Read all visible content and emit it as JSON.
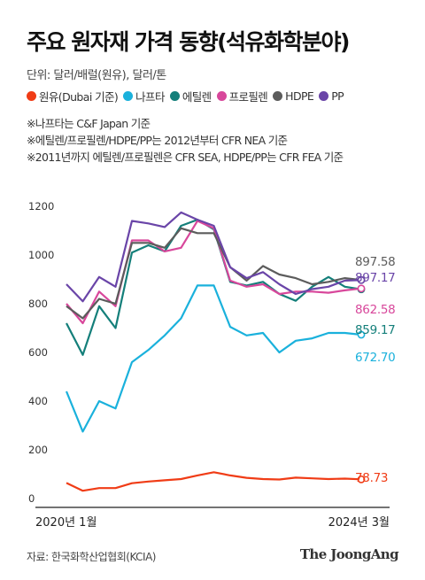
{
  "header": {
    "title": "주요 원자재 가격 동향(석유화학분야)",
    "unit": "단위: 달러/배럴(원유), 달러/톤"
  },
  "legend": [
    {
      "label": "원유(Dubai 기준)",
      "color": "#f03c16"
    },
    {
      "label": "나프타",
      "color": "#1ab1dc"
    },
    {
      "label": "에틸렌",
      "color": "#147f7a"
    },
    {
      "label": "프로필렌",
      "color": "#d8479b"
    },
    {
      "label": "HDPE",
      "color": "#5c5c5c"
    },
    {
      "label": "PP",
      "color": "#6a45a8"
    }
  ],
  "notes": [
    "※나프타는 C&F Japan 기준",
    "※에틸렌/프로필렌/HDPE/PP는 2012년부터 CFR NEA 기준",
    "※2011년까지 에틸렌/프로필렌은 CFR SEA, HDPE/PP는 CFR FEA 기준"
  ],
  "footer": {
    "source": "자료: 한국화학산업협회(KCIA)",
    "brand": "The JoongAng"
  },
  "chart_data": {
    "type": "line",
    "x_labels": [
      "2020년 1월",
      "2024년 3월"
    ],
    "x_start": "2020-01",
    "x_end": "2024-03",
    "ylim": [
      0,
      1200
    ],
    "yticks": [
      0,
      200,
      400,
      600,
      800,
      1000,
      1200
    ],
    "grid": false,
    "end_labels": [
      {
        "series": "HDPE",
        "text": "897.58",
        "color": "#5c5c5c"
      },
      {
        "series": "PP",
        "text": "897.17",
        "color": "#6a45a8"
      },
      {
        "series": "프로필렌",
        "text": "862.58",
        "color": "#d8479b"
      },
      {
        "series": "에틸렌",
        "text": "859.17",
        "color": "#147f7a"
      },
      {
        "series": "나프타",
        "text": "672.70",
        "color": "#1ab1dc"
      },
      {
        "series": "원유(Dubai 기준)",
        "text": "78.73",
        "color": "#f03c16"
      }
    ],
    "series": [
      {
        "name": "원유(Dubai 기준)",
        "color": "#f03c16",
        "values": [
          64,
          32,
          43,
          43,
          63,
          70,
          75,
          80,
          95,
          108,
          95,
          85,
          80,
          78,
          86,
          83,
          80,
          82,
          78.73
        ]
      },
      {
        "name": "나프타",
        "color": "#1ab1dc",
        "values": [
          440,
          275,
          400,
          370,
          560,
          610,
          670,
          740,
          875,
          875,
          705,
          670,
          680,
          600,
          648,
          658,
          680,
          680,
          672.7
        ]
      },
      {
        "name": "에틸렌",
        "color": "#147f7a",
        "values": [
          720,
          590,
          790,
          700,
          1010,
          1040,
          1015,
          1120,
          1145,
          1105,
          890,
          875,
          890,
          840,
          812,
          870,
          910,
          870,
          859.17
        ]
      },
      {
        "name": "프로필렌",
        "color": "#d8479b",
        "values": [
          800,
          720,
          850,
          790,
          1060,
          1060,
          1015,
          1030,
          1140,
          1110,
          895,
          870,
          880,
          840,
          850,
          850,
          845,
          855,
          862.58
        ]
      },
      {
        "name": "HDPE",
        "color": "#5c5c5c",
        "values": [
          790,
          740,
          820,
          800,
          1050,
          1050,
          1030,
          1110,
          1090,
          1090,
          950,
          895,
          955,
          920,
          905,
          880,
          890,
          905,
          897.58
        ]
      },
      {
        "name": "PP",
        "color": "#6a45a8",
        "values": [
          880,
          810,
          910,
          870,
          1140,
          1130,
          1115,
          1175,
          1145,
          1120,
          950,
          905,
          930,
          880,
          840,
          860,
          870,
          895,
          897.17
        ]
      }
    ]
  }
}
